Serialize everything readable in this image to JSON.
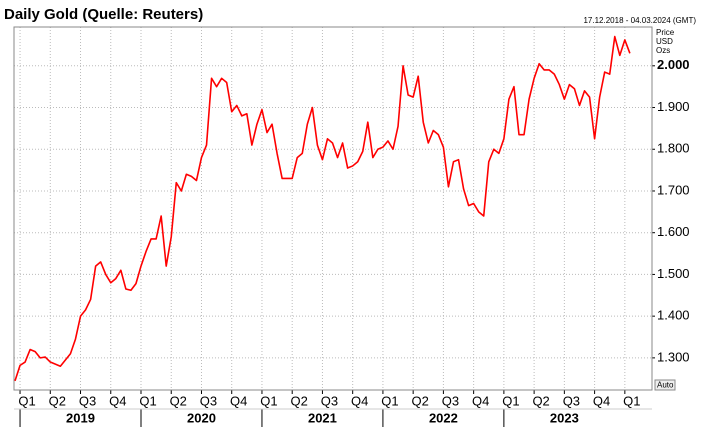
{
  "chart_data": {
    "type": "line",
    "title": "Daily Gold (Quelle: Reuters)",
    "date_range": "17.12.2018 - 04.03.2024 (GMT)",
    "y_label_lines": [
      "Price",
      "USD",
      "Ozs"
    ],
    "button": "Auto",
    "color": "#ff0000",
    "grid": true,
    "categories": [
      null,
      "Q1",
      null,
      null,
      null,
      null,
      null,
      "Q2",
      null,
      null,
      null,
      null,
      null,
      "Q3",
      null,
      null,
      null,
      null,
      null,
      "Q4",
      null,
      null,
      null,
      null,
      null,
      "Q1",
      null,
      null,
      null,
      null,
      null,
      "Q2",
      null,
      null,
      null,
      null,
      null,
      "Q3",
      null,
      null,
      null,
      null,
      null,
      "Q4",
      null,
      null,
      null,
      null,
      null,
      "Q1",
      null,
      null,
      null,
      null,
      null,
      "Q2",
      null,
      null,
      null,
      null,
      null,
      "Q3",
      null,
      null,
      null,
      null,
      null,
      "Q4",
      null,
      null,
      null,
      null,
      null,
      "Q1",
      null,
      null,
      null,
      null,
      null,
      "Q2",
      null,
      null,
      null,
      null,
      null,
      "Q3",
      null,
      null,
      null,
      null,
      null,
      "Q4",
      null,
      null,
      null,
      null,
      null,
      "Q1",
      null,
      null,
      null,
      null,
      null,
      "Q2",
      null,
      null,
      null,
      null,
      null,
      "Q3",
      null,
      null,
      null,
      null,
      null,
      "Q4",
      null,
      null,
      null,
      null,
      null,
      "Q1",
      null
    ],
    "x_groups": [
      "2019",
      "2020",
      "2021",
      "2022",
      "2023"
    ],
    "values": [
      1245,
      1282,
      1290,
      1320,
      1315,
      1300,
      1302,
      1290,
      1285,
      1280,
      1295,
      1310,
      1345,
      1400,
      1415,
      1440,
      1520,
      1530,
      1500,
      1480,
      1490,
      1510,
      1465,
      1462,
      1478,
      1520,
      1555,
      1585,
      1585,
      1640,
      1520,
      1590,
      1720,
      1700,
      1740,
      1735,
      1725,
      1780,
      1810,
      1970,
      1950,
      1970,
      1960,
      1890,
      1905,
      1880,
      1885,
      1810,
      1860,
      1895,
      1840,
      1860,
      1790,
      1730,
      1730,
      1730,
      1780,
      1790,
      1860,
      1900,
      1810,
      1775,
      1825,
      1815,
      1780,
      1815,
      1755,
      1760,
      1770,
      1795,
      1865,
      1780,
      1800,
      1805,
      1820,
      1800,
      1855,
      2000,
      1930,
      1925,
      1975,
      1865,
      1815,
      1845,
      1835,
      1805,
      1710,
      1770,
      1775,
      1705,
      1665,
      1670,
      1650,
      1640,
      1770,
      1800,
      1790,
      1825,
      1920,
      1950,
      1835,
      1835,
      1920,
      1970,
      2005,
      1990,
      1990,
      1980,
      1955,
      1920,
      1955,
      1945,
      1905,
      1940,
      1925,
      1825,
      1925,
      1985,
      1980,
      2070,
      2025,
      2062,
      2030
    ],
    "ylim": [
      1223,
      2093
    ],
    "yticks": [
      {
        "value": 1300,
        "label": "1.300"
      },
      {
        "value": 1400,
        "label": "1.400"
      },
      {
        "value": 1500,
        "label": "1.500"
      },
      {
        "value": 1600,
        "label": "1.600"
      },
      {
        "value": 1700,
        "label": "1.700"
      },
      {
        "value": 1800,
        "label": "1.800"
      },
      {
        "value": 1900,
        "label": "1.900"
      },
      {
        "value": 2000,
        "label": "2.000"
      }
    ]
  }
}
